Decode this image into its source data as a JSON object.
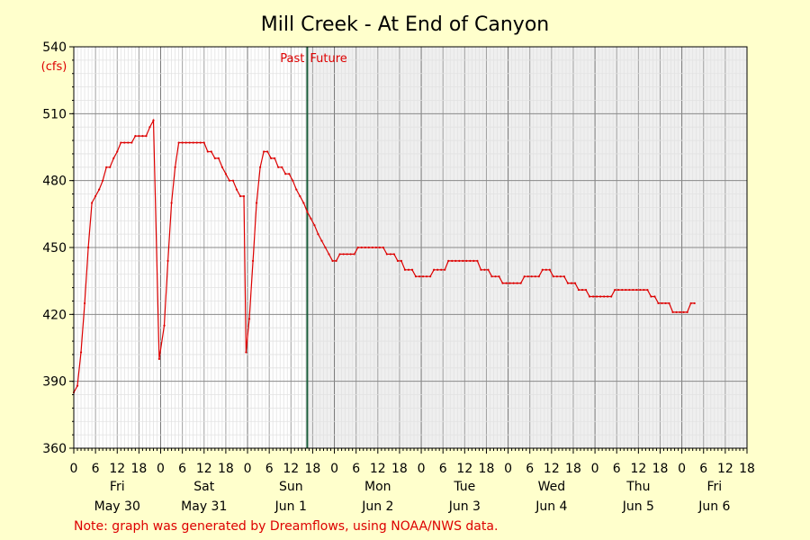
{
  "chart_data": {
    "type": "line",
    "title": "Mill Creek - At End of Canyon",
    "ylabel": "(cfs)",
    "xlabel": "",
    "ylim": [
      360,
      540
    ],
    "y_ticks": [
      360,
      390,
      420,
      450,
      480,
      510,
      540
    ],
    "x_unit": "hours from May 30 00:00",
    "xlim": [
      0,
      186
    ],
    "hour_tick_labels": [
      "0",
      "6",
      "12",
      "18",
      "0",
      "6",
      "12",
      "18",
      "0",
      "6",
      "12",
      "18",
      "0",
      "6",
      "12",
      "18",
      "0",
      "6",
      "12",
      "18",
      "0",
      "6",
      "12",
      "18",
      "0",
      "6",
      "12",
      "18",
      "0",
      "6",
      "12",
      "18"
    ],
    "day_labels": [
      {
        "name": "Fri",
        "date": "May 30"
      },
      {
        "name": "Sat",
        "date": "May 31"
      },
      {
        "name": "Sun",
        "date": "Jun 1"
      },
      {
        "name": "Mon",
        "date": "Jun 2"
      },
      {
        "name": "Tue",
        "date": "Jun 3"
      },
      {
        "name": "Wed",
        "date": "Jun 4"
      },
      {
        "name": "Thu",
        "date": "Jun 5"
      },
      {
        "name": "Fri",
        "date": "Jun 6"
      }
    ],
    "past_label": "Past",
    "future_label": "Future",
    "now_x": 64.5,
    "grid": true,
    "series": [
      {
        "color": "#dd0000",
        "points": [
          [
            0,
            385
          ],
          [
            1,
            388
          ],
          [
            2,
            403
          ],
          [
            3,
            425
          ],
          [
            4,
            450
          ],
          [
            5,
            470
          ],
          [
            6,
            473
          ],
          [
            7,
            476
          ],
          [
            8,
            480
          ],
          [
            9,
            486
          ],
          [
            10,
            486
          ],
          [
            11,
            490
          ],
          [
            12,
            493
          ],
          [
            13,
            497
          ],
          [
            14,
            497
          ],
          [
            15,
            497
          ],
          [
            16,
            497
          ],
          [
            17,
            500
          ],
          [
            18,
            500
          ],
          [
            19,
            500
          ],
          [
            20,
            500
          ],
          [
            21,
            504
          ],
          [
            22,
            507
          ],
          [
            23.6,
            400
          ],
          [
            25,
            415
          ],
          [
            26,
            444
          ],
          [
            27,
            470
          ],
          [
            28,
            486
          ],
          [
            29,
            497
          ],
          [
            30,
            497
          ],
          [
            31,
            497
          ],
          [
            32,
            497
          ],
          [
            33,
            497
          ],
          [
            34,
            497
          ],
          [
            35,
            497
          ],
          [
            36,
            497
          ],
          [
            37,
            493
          ],
          [
            38,
            493
          ],
          [
            39,
            490
          ],
          [
            40,
            490
          ],
          [
            41,
            486
          ],
          [
            42,
            483
          ],
          [
            43,
            480
          ],
          [
            44,
            480
          ],
          [
            45,
            476
          ],
          [
            46,
            473
          ],
          [
            47,
            473
          ],
          [
            47.6,
            403
          ],
          [
            48.5,
            418
          ],
          [
            49.5,
            444
          ],
          [
            50.5,
            470
          ],
          [
            51.5,
            486
          ],
          [
            52.5,
            493
          ],
          [
            53.5,
            493
          ],
          [
            54.5,
            490
          ],
          [
            55.5,
            490
          ],
          [
            56.5,
            486
          ],
          [
            57.5,
            486
          ],
          [
            58.5,
            483
          ],
          [
            59.5,
            483
          ],
          [
            60.5,
            480
          ],
          [
            61.5,
            476
          ],
          [
            62.5,
            473
          ],
          [
            63.5,
            470
          ],
          [
            64.5,
            466
          ],
          [
            65.5,
            463
          ],
          [
            66.5,
            460
          ],
          [
            67.5,
            456
          ],
          [
            68.5,
            453
          ],
          [
            69.5,
            450
          ],
          [
            70.5,
            447
          ],
          [
            71.5,
            444
          ],
          [
            72.5,
            444
          ],
          [
            73.5,
            447
          ],
          [
            74.5,
            447
          ],
          [
            75.5,
            447
          ],
          [
            76.5,
            447
          ],
          [
            77.5,
            447
          ],
          [
            78.5,
            450
          ],
          [
            79.5,
            450
          ],
          [
            80.5,
            450
          ],
          [
            81.5,
            450
          ],
          [
            82.5,
            450
          ],
          [
            83.5,
            450
          ],
          [
            84.5,
            450
          ],
          [
            85.5,
            450
          ],
          [
            86.5,
            447
          ],
          [
            87.5,
            447
          ],
          [
            88.5,
            447
          ],
          [
            89.5,
            444
          ],
          [
            90.5,
            444
          ],
          [
            91.5,
            440
          ],
          [
            92.5,
            440
          ],
          [
            93.5,
            440
          ],
          [
            94.5,
            437
          ],
          [
            95.5,
            437
          ],
          [
            96.5,
            437
          ],
          [
            97.5,
            437
          ],
          [
            98.5,
            437
          ],
          [
            99.5,
            440
          ],
          [
            100.5,
            440
          ],
          [
            101.5,
            440
          ],
          [
            102.5,
            440
          ],
          [
            103.5,
            444
          ],
          [
            104.5,
            444
          ],
          [
            105.5,
            444
          ],
          [
            106.5,
            444
          ],
          [
            107.5,
            444
          ],
          [
            108.5,
            444
          ],
          [
            109.5,
            444
          ],
          [
            110.5,
            444
          ],
          [
            111.5,
            444
          ],
          [
            112.5,
            440
          ],
          [
            113.5,
            440
          ],
          [
            114.5,
            440
          ],
          [
            115.5,
            437
          ],
          [
            116.5,
            437
          ],
          [
            117.5,
            437
          ],
          [
            118.5,
            434
          ],
          [
            119.5,
            434
          ],
          [
            120.5,
            434
          ],
          [
            121.5,
            434
          ],
          [
            122.5,
            434
          ],
          [
            123.5,
            434
          ],
          [
            124.5,
            437
          ],
          [
            125.5,
            437
          ],
          [
            126.5,
            437
          ],
          [
            127.5,
            437
          ],
          [
            128.5,
            437
          ],
          [
            129.5,
            440
          ],
          [
            130.5,
            440
          ],
          [
            131.5,
            440
          ],
          [
            132.5,
            437
          ],
          [
            133.5,
            437
          ],
          [
            134.5,
            437
          ],
          [
            135.5,
            437
          ],
          [
            136.5,
            434
          ],
          [
            137.5,
            434
          ],
          [
            138.5,
            434
          ],
          [
            139.5,
            431
          ],
          [
            140.5,
            431
          ],
          [
            141.5,
            431
          ],
          [
            142.5,
            428
          ],
          [
            143.5,
            428
          ],
          [
            144.5,
            428
          ],
          [
            145.5,
            428
          ],
          [
            146.5,
            428
          ],
          [
            147.5,
            428
          ],
          [
            148.5,
            428
          ],
          [
            149.5,
            431
          ],
          [
            150.5,
            431
          ],
          [
            151.5,
            431
          ],
          [
            152.5,
            431
          ],
          [
            153.5,
            431
          ],
          [
            154.5,
            431
          ],
          [
            155.5,
            431
          ],
          [
            156.5,
            431
          ],
          [
            157.5,
            431
          ],
          [
            158.5,
            431
          ],
          [
            159.5,
            428
          ],
          [
            160.5,
            428
          ],
          [
            161.5,
            425
          ],
          [
            162.5,
            425
          ],
          [
            163.5,
            425
          ],
          [
            164.5,
            425
          ],
          [
            165.5,
            421
          ],
          [
            166.5,
            421
          ],
          [
            167.5,
            421
          ],
          [
            168.5,
            421
          ],
          [
            169.5,
            421
          ],
          [
            170.5,
            425
          ],
          [
            171.5,
            425
          ]
        ]
      }
    ]
  },
  "footer_note": "Note: graph was generated by Dreamflows, using NOAA/NWS data."
}
